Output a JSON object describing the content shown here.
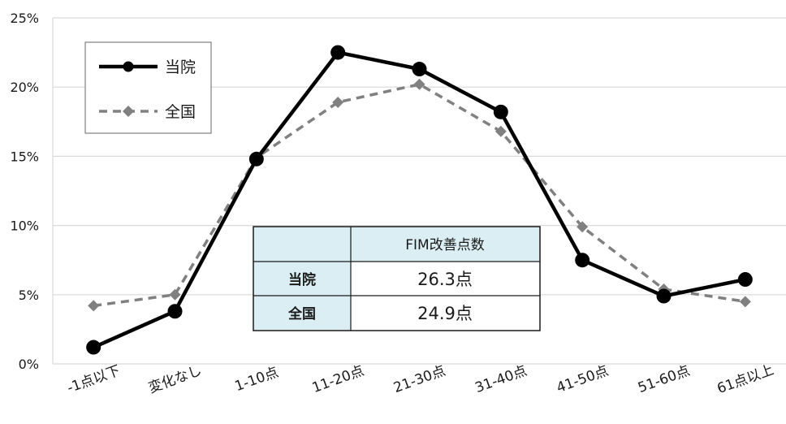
{
  "chart_data": {
    "type": "line",
    "categories": [
      "-1点以下",
      "変化なし",
      "1-10点",
      "11-20点",
      "21-30点",
      "31-40点",
      "41-50点",
      "51-60点",
      "61点以上"
    ],
    "series": [
      {
        "name": "当院",
        "values": [
          1.2,
          3.8,
          14.8,
          22.5,
          21.3,
          18.2,
          7.5,
          4.9,
          6.1
        ],
        "color": "#000000",
        "marker": "circle",
        "dash": "solid"
      },
      {
        "name": "全国",
        "values": [
          4.2,
          5.0,
          14.9,
          18.9,
          20.2,
          16.8,
          9.9,
          5.4,
          4.5
        ],
        "color": "#808080",
        "marker": "diamond",
        "dash": "dashed"
      }
    ],
    "ylim": [
      0,
      25
    ],
    "yticks": [
      "0%",
      "5%",
      "10%",
      "15%",
      "20%",
      "25%"
    ],
    "grid": true,
    "legend_placement": "top-left",
    "table": {
      "header": [
        "",
        "FIM改善点数"
      ],
      "rows": [
        [
          "当院",
          "26.3点"
        ],
        [
          "全国",
          "24.9点"
        ]
      ],
      "header_fill": "#dbeef3"
    }
  }
}
